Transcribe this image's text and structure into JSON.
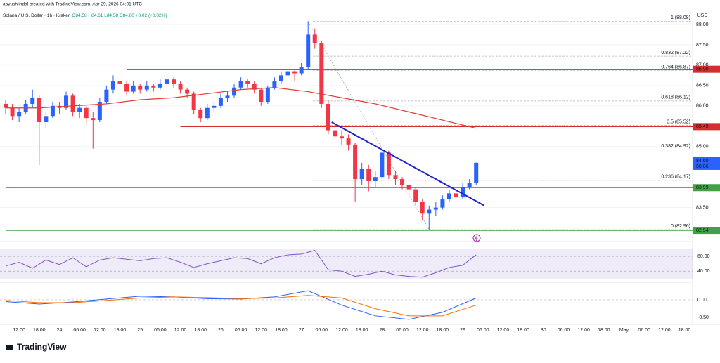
{
  "header": {
    "credit": "aayushjindal created with TradingView.com, Apr 29, 2026 04:01 UTC"
  },
  "legend": {
    "symbol": "Solana / U.S. Dollar · 1h · Kraken",
    "open": "O84.58",
    "high": "H84.61",
    "low": "L84.58",
    "close": "C84.60",
    "change": "+0.02 (+0.02%)"
  },
  "chart_data": {
    "type": "candlestick",
    "currency": "USD",
    "up_color": "#2962ff",
    "down_color": "#f23645",
    "candles": [
      [
        86.05,
        86.15,
        85.8,
        85.95
      ],
      [
        85.95,
        86.05,
        85.65,
        85.75
      ],
      [
        85.75,
        85.95,
        85.6,
        85.85
      ],
      [
        85.85,
        86.15,
        85.8,
        86.05
      ],
      [
        86.05,
        86.4,
        85.95,
        86.2
      ],
      [
        86.2,
        86.25,
        84.55,
        85.6
      ],
      [
        85.6,
        85.85,
        85.45,
        85.75
      ],
      [
        85.75,
        86.1,
        85.7,
        86.0
      ],
      [
        86.0,
        86.1,
        85.8,
        85.95
      ],
      [
        85.95,
        86.35,
        85.9,
        86.25
      ],
      [
        86.25,
        86.3,
        85.75,
        85.85
      ],
      [
        85.85,
        86.05,
        85.7,
        85.95
      ],
      [
        85.95,
        86.0,
        85.55,
        85.7
      ],
      [
        85.7,
        85.85,
        84.95,
        85.65
      ],
      [
        85.65,
        86.2,
        85.6,
        86.1
      ],
      [
        86.1,
        86.5,
        86.05,
        86.4
      ],
      [
        86.4,
        86.75,
        86.3,
        86.6
      ],
      [
        86.6,
        86.9,
        86.4,
        86.55
      ],
      [
        86.55,
        86.6,
        86.25,
        86.35
      ],
      [
        86.35,
        86.6,
        86.3,
        86.5
      ],
      [
        86.5,
        86.55,
        86.3,
        86.4
      ],
      [
        86.4,
        86.6,
        86.35,
        86.5
      ],
      [
        86.5,
        86.55,
        86.35,
        86.45
      ],
      [
        86.45,
        86.65,
        86.4,
        86.55
      ],
      [
        86.55,
        86.8,
        86.5,
        86.65
      ],
      [
        86.65,
        86.7,
        86.45,
        86.55
      ],
      [
        86.55,
        86.6,
        86.3,
        86.4
      ],
      [
        86.4,
        86.45,
        86.2,
        86.3
      ],
      [
        86.3,
        86.35,
        85.8,
        85.9
      ],
      [
        85.9,
        85.95,
        85.6,
        85.7
      ],
      [
        85.7,
        86.05,
        85.65,
        85.95
      ],
      [
        85.95,
        86.1,
        85.85,
        86.0
      ],
      [
        86.0,
        86.3,
        85.95,
        86.2
      ],
      [
        86.2,
        86.35,
        86.1,
        86.25
      ],
      [
        86.25,
        86.55,
        86.2,
        86.45
      ],
      [
        86.45,
        86.7,
        86.4,
        86.6
      ],
      [
        86.6,
        86.65,
        86.45,
        86.55
      ],
      [
        86.55,
        86.6,
        86.3,
        86.4
      ],
      [
        86.4,
        86.45,
        86.0,
        86.1
      ],
      [
        86.1,
        86.5,
        86.05,
        86.45
      ],
      [
        86.45,
        86.7,
        86.4,
        86.6
      ],
      [
        86.6,
        86.85,
        86.55,
        86.75
      ],
      [
        86.75,
        86.95,
        86.7,
        86.85
      ],
      [
        86.85,
        86.9,
        86.6,
        86.8
      ],
      [
        86.8,
        87.05,
        86.75,
        86.95
      ],
      [
        86.95,
        88.08,
        86.9,
        87.75
      ],
      [
        87.75,
        87.9,
        87.4,
        87.55
      ],
      [
        87.55,
        87.6,
        85.95,
        86.05
      ],
      [
        86.05,
        86.15,
        85.3,
        85.4
      ],
      [
        85.4,
        85.55,
        85.15,
        85.25
      ],
      [
        85.25,
        85.4,
        85.05,
        85.2
      ],
      [
        85.2,
        85.3,
        84.9,
        85.05
      ],
      [
        85.05,
        85.1,
        83.65,
        84.2
      ],
      [
        84.2,
        84.6,
        84.05,
        84.45
      ],
      [
        84.45,
        84.55,
        83.9,
        84.15
      ],
      [
        84.15,
        84.4,
        84.0,
        84.25
      ],
      [
        84.25,
        84.95,
        84.2,
        84.85
      ],
      [
        84.85,
        84.9,
        84.2,
        84.3
      ],
      [
        84.3,
        84.4,
        84.05,
        84.2
      ],
      [
        84.2,
        84.25,
        83.95,
        84.05
      ],
      [
        84.05,
        84.1,
        83.8,
        83.95
      ],
      [
        83.95,
        84.0,
        83.55,
        83.65
      ],
      [
        83.65,
        83.7,
        83.2,
        83.35
      ],
      [
        83.35,
        83.55,
        82.96,
        83.45
      ],
      [
        83.45,
        83.65,
        83.3,
        83.5
      ],
      [
        83.5,
        83.8,
        83.45,
        83.7
      ],
      [
        83.7,
        83.95,
        83.65,
        83.85
      ],
      [
        83.85,
        83.9,
        83.65,
        83.75
      ],
      [
        83.75,
        84.1,
        83.7,
        84.0
      ],
      [
        84.0,
        84.2,
        83.95,
        84.1
      ],
      [
        84.1,
        84.61,
        84.05,
        84.6
      ]
    ],
    "ma": {
      "color": "#e53935",
      "x": [
        0,
        5,
        10,
        15,
        20,
        25,
        30,
        35,
        40,
        45,
        50,
        55,
        60,
        65,
        70
      ],
      "values": [
        85.95,
        85.95,
        86.0,
        86.05,
        86.15,
        86.2,
        86.3,
        86.4,
        86.45,
        86.35,
        86.2,
        86.05,
        85.85,
        85.65,
        85.45
      ]
    },
    "trendline": {
      "color": "#1e22c8",
      "x": [
        48.5,
        71.2
      ],
      "values": [
        85.6,
        83.55
      ]
    },
    "levels": [
      {
        "price": 86.9,
        "label": "86.90",
        "color": "#d32f2f",
        "start": 18
      },
      {
        "price": 85.49,
        "label": "85.49",
        "color": "#d32f2f",
        "start": 26
      },
      {
        "price": 83.99,
        "label": "83.99",
        "color": "#43a047",
        "start": 0
      },
      {
        "price": 82.94,
        "label": "82.94",
        "color": "#43a047",
        "start": 0
      }
    ],
    "fib": [
      {
        "price": 88.08,
        "label": "1 (88.08)"
      },
      {
        "price": 87.22,
        "label": "0.832 (87.22)"
      },
      {
        "price": 86.87,
        "label": "0.764 (86.87)"
      },
      {
        "price": 86.12,
        "label": "0.618 (86.12)"
      },
      {
        "price": 85.52,
        "label": "0.5 (85.52)"
      },
      {
        "price": 84.92,
        "label": "0.382 (84.92)"
      },
      {
        "price": 84.17,
        "label": "0.236 (84.17)"
      },
      {
        "price": 82.96,
        "label": "0 (82.96)"
      }
    ],
    "last": {
      "price": 84.6,
      "label": "84.60",
      "countdown": "58:06"
    },
    "ylim": [
      82.7,
      88.12
    ],
    "yticks": [
      {
        "value": 88,
        "label": "88.00"
      },
      {
        "value": 87.5,
        "label": "87.50"
      },
      {
        "value": 87,
        "label": "87.00"
      },
      {
        "value": 86.5,
        "label": "86.50"
      },
      {
        "value": 86,
        "label": "86.00"
      },
      {
        "value": 85,
        "label": "85.00"
      },
      {
        "value": 83.5,
        "label": "83.50"
      }
    ],
    "xticks": [
      "12:00",
      "18:00",
      "24",
      "06:00",
      "12:00",
      "18:00",
      "25",
      "06:00",
      "12:00",
      "18:00",
      "26",
      "06:00",
      "12:00",
      "18:00",
      "27",
      "06:00",
      "12:00",
      "18:00",
      "28",
      "06:00",
      "12:00",
      "18:00",
      "29",
      "06:00",
      "12:00",
      "18:00",
      "30",
      "06:00",
      "12:00",
      "18:00",
      "May",
      "06:00",
      "12:00",
      "18:00"
    ],
    "rsi": {
      "color": "#7e57c2",
      "ylim": [
        27,
        78
      ],
      "band": [
        30,
        70
      ],
      "yticks": [
        {
          "value": 60,
          "label": "60.00"
        },
        {
          "value": 40,
          "label": "40.00"
        }
      ],
      "x": [
        0,
        2,
        4,
        6,
        8,
        10,
        12,
        14,
        16,
        18,
        20,
        22,
        24,
        26,
        28,
        30,
        32,
        34,
        36,
        38,
        40,
        42,
        44,
        46,
        48,
        50,
        52,
        54,
        56,
        58,
        60,
        62,
        64,
        66,
        68,
        70
      ],
      "values": [
        47,
        52,
        44,
        55,
        49,
        58,
        46,
        55,
        58,
        56,
        54,
        57,
        58,
        52,
        45,
        50,
        54,
        58,
        57,
        50,
        58,
        62,
        63,
        68,
        42,
        40,
        33,
        36,
        40,
        35,
        33,
        32,
        38,
        45,
        48,
        62
      ]
    },
    "macd": {
      "ylim": [
        -0.65,
        0.45
      ],
      "yticks": [
        {
          "value": 0,
          "label": "0.00"
        },
        {
          "value": -0.5,
          "label": "-0.50"
        }
      ],
      "x": [
        0,
        5,
        10,
        15,
        20,
        25,
        30,
        35,
        40,
        45,
        50,
        55,
        60,
        65,
        70
      ],
      "series": [
        {
          "color": "#2962ff",
          "values": [
            -0.05,
            -0.12,
            -0.06,
            0.02,
            0.1,
            0.08,
            0.03,
            0.02,
            0.08,
            0.25,
            -0.15,
            -0.45,
            -0.55,
            -0.35,
            0.05
          ]
        },
        {
          "color": "#ff6d00",
          "values": [
            -0.02,
            -0.08,
            -0.08,
            -0.02,
            0.05,
            0.08,
            0.06,
            0.03,
            0.05,
            0.12,
            0.05,
            -0.25,
            -0.45,
            -0.45,
            -0.15
          ]
        }
      ]
    }
  },
  "footer": {
    "logo": "TradingView"
  }
}
